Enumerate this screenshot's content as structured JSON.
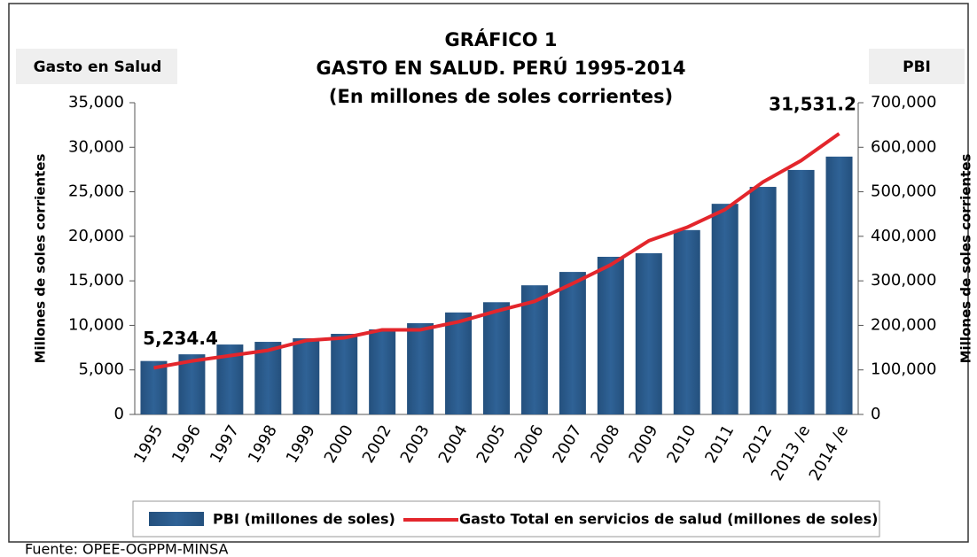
{
  "chart_data": {
    "type": "bar-line",
    "title": "GRÁFICO 1",
    "subtitle": "GASTO EN SALUD. PERÚ 1995-2014",
    "subtitle2": "(En millones de soles corrientes)",
    "y_box_label": "Gasto en Salud",
    "y2_box_label": "PBI",
    "ylabel": "Millones de soles corrientes",
    "y2label": "Millones de soles corrientes",
    "source": "Fuente: OPEE-OGPPM-MINSA",
    "categories": [
      "1995",
      "1996",
      "1997",
      "1998",
      "1999",
      "2000",
      "2002",
      "2003",
      "2004",
      "2005",
      "2006",
      "2007",
      "2008",
      "2009",
      "2010",
      "2011",
      "2012",
      "2013 /e",
      "2014 /e"
    ],
    "series": [
      {
        "name": "PBI (millones de soles)",
        "color": "#2f6296",
        "axis": "y2",
        "kind": "bar",
        "values": [
          120000,
          135000,
          157000,
          163000,
          171000,
          181000,
          191000,
          205000,
          229000,
          252000,
          290000,
          320000,
          354000,
          362000,
          414000,
          473000,
          511000,
          549000,
          579000
        ]
      },
      {
        "name": "Gasto Total en servicios de salud (millones de soles)",
        "color": "#e3262c",
        "axis": "y",
        "kind": "line",
        "values": [
          5234.4,
          6000,
          6600,
          7200,
          8300,
          8600,
          9500,
          9500,
          10400,
          11600,
          12700,
          14700,
          16800,
          19500,
          21000,
          23000,
          26100,
          28500,
          31531.2
        ],
        "value_labels": [
          "5,234.4",
          null,
          null,
          null,
          null,
          null,
          null,
          null,
          null,
          null,
          null,
          null,
          null,
          null,
          null,
          null,
          null,
          null,
          "31,531.2"
        ]
      }
    ],
    "ylim": [
      0,
      35000
    ],
    "yticks": [
      0,
      {
        "value": 5000,
        "label": "5,000"
      },
      {
        "value": 10000,
        "label": "10,000"
      },
      {
        "value": 15000,
        "label": "15,000"
      },
      {
        "value": 20000,
        "label": "20,000"
      },
      {
        "value": 25000,
        "label": "25,000"
      },
      {
        "value": 30000,
        "label": "30,000"
      },
      {
        "value": 35000,
        "label": "35,000"
      }
    ],
    "y2lim": [
      0,
      700000
    ],
    "y2ticks": [
      0,
      {
        "value": 100000,
        "label": "100,000"
      },
      {
        "value": 200000,
        "label": "200,000"
      },
      {
        "value": 300000,
        "label": "300,000"
      },
      {
        "value": 400000,
        "label": "400,000"
      },
      {
        "value": 500000,
        "label": "500,000"
      },
      {
        "value": 600000,
        "label": "600,000"
      },
      {
        "value": 700000,
        "label": "700,000"
      }
    ],
    "legend": "bottom"
  }
}
